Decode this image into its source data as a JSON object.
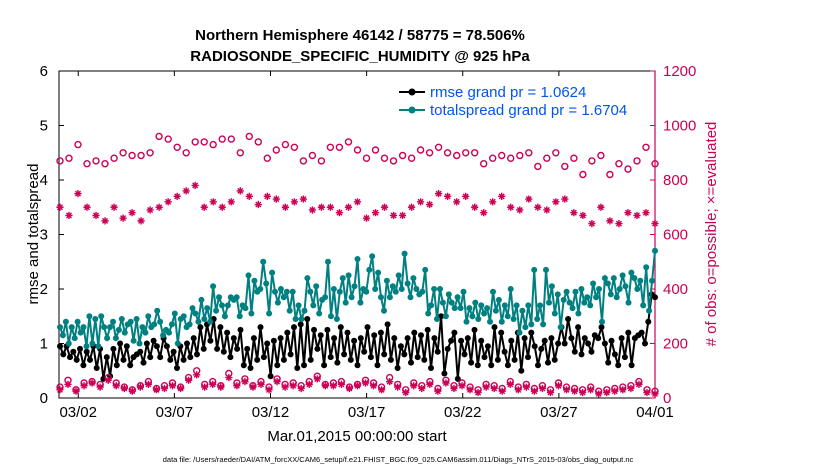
{
  "colors": {
    "rmse": "#000000",
    "spread": "#008080",
    "obs": "#cc0055",
    "rmse_legend_text": "#0055ee",
    "spread_legend_text": "#0055ee",
    "axis": "#000000"
  },
  "chart_data": {
    "type": "line",
    "title_line1": "Northern Hemisphere 46142 / 58775 = 78.506%",
    "title_line2": "RADIOSONDE_SPECIFIC_HUMIDITY @ 925 hPa",
    "xlabel": "Mar.01,2015 00:00:00 start",
    "ylabel_left": "rmse and totalspread",
    "ylabel_right": "# of obs: o=possible; ×=evaluated",
    "footnote": "data file: /Users/raeder/DAI/ATM_forcXX/CAM6_setup/f.e21.FHIST_BGC.f09_025.CAM6assim.011/Diags_NTrS_2015-03/obs_diag_output.nc",
    "xlim": [
      0,
      31
    ],
    "x_ticks": [
      1,
      6,
      11,
      16,
      21,
      26,
      31
    ],
    "x_tick_labels": [
      "03/02",
      "03/07",
      "03/12",
      "03/17",
      "03/22",
      "03/27",
      "04/01"
    ],
    "ylim_left": [
      0,
      6
    ],
    "y_ticks_left": [
      "0",
      "1",
      "2",
      "3",
      "4",
      "5",
      "6"
    ],
    "ylim_right": [
      0,
      1200
    ],
    "y_ticks_right": [
      "0",
      "200",
      "400",
      "600",
      "800",
      "1000",
      "1200"
    ],
    "legend": [
      {
        "name": "rmse grand pr = 1.0624"
      },
      {
        "name": "totalspread grand pr = 1.6704"
      }
    ],
    "series": [
      {
        "name": "rmse",
        "axis": "left",
        "values": [
          0.95,
          0.8,
          0.95,
          0.75,
          0.85,
          0.7,
          0.9,
          0.6,
          0.85,
          0.7,
          0.95,
          0.55,
          0.9,
          0.35,
          0.75,
          0.4,
          0.9,
          0.6,
          1.0,
          0.7,
          0.95,
          0.6,
          0.75,
          0.8,
          0.85,
          0.65,
          1.0,
          0.75,
          1.05,
          0.95,
          0.75,
          1.1,
          0.95,
          0.7,
          0.85,
          0.55,
          0.95,
          0.7,
          1.0,
          0.75,
          1.1,
          0.8,
          1.3,
          0.9,
          1.35,
          1.05,
          1.45,
          0.9,
          1.3,
          0.85,
          1.2,
          0.75,
          1.1,
          0.9,
          1.25,
          0.6,
          0.9,
          0.55,
          1.1,
          0.7,
          1.3,
          0.75,
          1.0,
          0.4,
          1.05,
          0.6,
          1.1,
          0.7,
          1.2,
          0.8,
          1.3,
          0.55,
          1.35,
          0.6,
          1.45,
          0.7,
          1.25,
          0.9,
          1.15,
          0.6,
          1.25,
          0.75,
          1.1,
          0.65,
          1.3,
          0.8,
          1.2,
          0.7,
          1.05,
          0.6,
          1.1,
          0.85,
          1.3,
          0.75,
          1.15,
          0.6,
          1.2,
          0.8,
          1.35,
          0.7,
          1.1,
          0.55,
          0.95,
          0.8,
          1.1,
          0.65,
          1.2,
          0.75,
          1.15,
          0.7,
          1.25,
          0.55,
          1.1,
          0.85,
          1.5,
          0.45,
          0.9,
          1.05,
          1.2,
          0.35,
          1.05,
          0.8,
          1.1,
          0.65,
          1.25,
          0.6,
          1.05,
          0.75,
          0.95,
          0.6,
          1.3,
          0.7,
          1.2,
          0.85,
          0.6,
          1.05,
          0.7,
          1.2,
          0.5,
          1.1,
          0.75,
          1.2,
          0.95,
          0.6,
          0.9,
          1.05,
          0.65,
          1.1,
          0.7,
          1.0,
          1.3,
          1.0,
          1.45,
          1.1,
          0.85,
          1.3,
          0.8,
          1.1,
          1.0,
          0.85,
          1.15,
          1.1,
          1.3,
          1.0,
          0.65,
          1.05,
          0.8,
          0.6,
          1.1,
          0.75,
          1.2,
          0.6,
          1.1,
          1.15,
          1.2,
          1.0,
          1.4,
          1.9,
          1.85
        ]
      },
      {
        "name": "totalspread",
        "axis": "left",
        "values": [
          1.3,
          1.15,
          1.4,
          1.0,
          1.3,
          1.1,
          1.4,
          1.2,
          1.3,
          0.95,
          1.5,
          1.0,
          1.45,
          0.95,
          1.5,
          1.3,
          1.1,
          1.3,
          1.4,
          1.1,
          1.25,
          1.45,
          1.2,
          1.35,
          1.4,
          1.05,
          1.45,
          1.0,
          1.3,
          1.2,
          1.5,
          1.3,
          1.35,
          1.6,
          1.4,
          1.15,
          1.25,
          1.2,
          1.35,
          1.55,
          1.0,
          1.45,
          1.5,
          1.3,
          1.35,
          1.65,
          1.55,
          1.4,
          1.8,
          1.45,
          1.65,
          1.4,
          2.05,
          1.6,
          1.85,
          1.7,
          1.5,
          1.7,
          1.85,
          1.8,
          1.85,
          1.5,
          1.7,
          1.65,
          2.25,
          1.55,
          2.15,
          1.95,
          2.0,
          2.5,
          2.1,
          1.55,
          2.3,
          1.95,
          1.75,
          2.0,
          1.85,
          1.95,
          1.6,
          1.95,
          1.45,
          1.7,
          1.45,
          1.6,
          2.2,
          1.95,
          1.7,
          2.05,
          1.55,
          1.8,
          1.85,
          2.5,
          1.5,
          2.0,
          1.45,
          1.95,
          2.2,
          1.75,
          2.25,
          1.85,
          2.05,
          2.55,
          1.75,
          2.0,
          1.95,
          2.35,
          2.6,
          2.0,
          2.3,
          1.85,
          1.6,
          2.15,
          1.85,
          2.05,
          1.95,
          2.25,
          2.0,
          2.65,
          2.1,
          1.85,
          2.2,
          2.0,
          1.9,
          1.95,
          2.35,
          1.55,
          1.7,
          2.0,
          1.45,
          2.0,
          1.75,
          1.5,
          1.9,
          1.75,
          1.65,
          1.85,
          1.65,
          1.95,
          1.4,
          1.65,
          1.5,
          1.75,
          1.45,
          1.7,
          1.55,
          1.65,
          1.4,
          1.95,
          1.6,
          1.8,
          1.4,
          1.7,
          1.5,
          2.0,
          1.45,
          1.7,
          1.2,
          1.6,
          1.3,
          1.7,
          1.35,
          2.35,
          1.45,
          1.7,
          1.35,
          2.35,
          1.75,
          2.05,
          1.55,
          1.9,
          1.3,
          1.8,
          1.95,
          1.75,
          1.65,
          1.95,
          1.55,
          2.0,
          1.75,
          1.85,
          1.7,
          2.1,
          1.85,
          2.0,
          1.4,
          2.2,
          2.1,
          1.9,
          2.2,
          1.85,
          2.0,
          2.25,
          2.05,
          1.75,
          2.3,
          2.2,
          2.0,
          2.15,
          1.7,
          2.4,
          1.6,
          2.15,
          2.7
        ]
      },
      {
        "name": "obs possible",
        "axis": "right",
        "marker": "o",
        "values": [
          870,
          880,
          930,
          860,
          870,
          860,
          880,
          900,
          890,
          890,
          900,
          960,
          950,
          920,
          900,
          940,
          940,
          930,
          950,
          950,
          900,
          960,
          940,
          880,
          910,
          930,
          920,
          870,
          890,
          870,
          920,
          920,
          940,
          910,
          880,
          910,
          880,
          870,
          890,
          880,
          910,
          900,
          920,
          900,
          890,
          900,
          900,
          860,
          880,
          890,
          880,
          890,
          900,
          850,
          880,
          900,
          850,
          880,
          820,
          870,
          890,
          820,
          860,
          840,
          870,
          920,
          860
        ]
      },
      {
        "name": "obs evaluated",
        "axis": "right",
        "marker": "x",
        "values": [
          700,
          670,
          750,
          700,
          670,
          650,
          700,
          660,
          680,
          650,
          690,
          700,
          720,
          740,
          760,
          780,
          700,
          720,
          700,
          720,
          760,
          740,
          710,
          740,
          730,
          700,
          720,
          730,
          690,
          700,
          700,
          680,
          700,
          720,
          660,
          680,
          700,
          670,
          670,
          700,
          720,
          710,
          750,
          740,
          720,
          740,
          700,
          680,
          720,
          740,
          700,
          690,
          730,
          700,
          690,
          720,
          730,
          680,
          670,
          640,
          700,
          650,
          640,
          680,
          670,
          680,
          640
        ]
      },
      {
        "name": "obs possible lower",
        "axis": "right",
        "marker": "o",
        "values": [
          40,
          65,
          30,
          55,
          60,
          50,
          75,
          55,
          40,
          30,
          45,
          60,
          35,
          45,
          55,
          40,
          75,
          100,
          50,
          60,
          45,
          90,
          55,
          70,
          45,
          60,
          40,
          70,
          50,
          55,
          45,
          60,
          80,
          50,
          55,
          60,
          40,
          50,
          65,
          55,
          40,
          75,
          50,
          30,
          55,
          45,
          60,
          35,
          65,
          45,
          55,
          40,
          30,
          50,
          45,
          35,
          60,
          40,
          50,
          35,
          45,
          30,
          55,
          40,
          35,
          30,
          40,
          25,
          30,
          35,
          40,
          45,
          60,
          30,
          25
        ]
      },
      {
        "name": "obs evaluated lower",
        "axis": "right",
        "marker": "x",
        "values": [
          30,
          50,
          25,
          45,
          55,
          40,
          65,
          45,
          35,
          25,
          40,
          50,
          30,
          35,
          45,
          35,
          65,
          85,
          40,
          50,
          40,
          75,
          45,
          60,
          40,
          50,
          30,
          60,
          40,
          45,
          35,
          50,
          70,
          45,
          45,
          50,
          35,
          45,
          55,
          45,
          30,
          60,
          40,
          20,
          45,
          35,
          50,
          25,
          55,
          35,
          45,
          30,
          20,
          40,
          35,
          25,
          50,
          30,
          40,
          25,
          35,
          20,
          45,
          30,
          25,
          20,
          30,
          15,
          20,
          25,
          30,
          35,
          50,
          20,
          15
        ]
      }
    ]
  }
}
